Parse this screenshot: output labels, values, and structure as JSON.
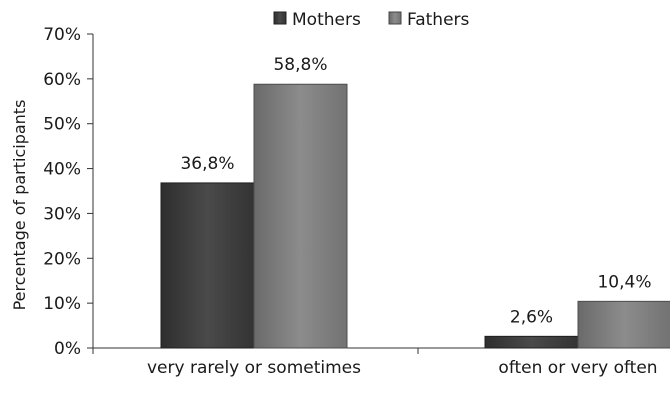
{
  "chart_data": {
    "type": "bar",
    "title": "",
    "xlabel": "",
    "ylabel": "Percentage of participants",
    "ylim": [
      0,
      70
    ],
    "yticks": [
      0,
      10,
      20,
      30,
      40,
      50,
      60,
      70
    ],
    "ytick_labels": [
      "0%",
      "10%",
      "20%",
      "30%",
      "40%",
      "50%",
      "60%",
      "70%"
    ],
    "categories": [
      "very rarely or sometimes",
      "often or very often"
    ],
    "series": [
      {
        "name": "Mothers",
        "values": [
          36.8,
          2.6
        ],
        "labels": [
          "36,8%",
          "2,6%"
        ],
        "color": "#404040"
      },
      {
        "name": "Fathers",
        "values": [
          58.8,
          10.4
        ],
        "labels": [
          "58,8%",
          "10,4%"
        ],
        "color": "#7f7f7f"
      }
    ],
    "grid": false,
    "legend_position": "top"
  }
}
